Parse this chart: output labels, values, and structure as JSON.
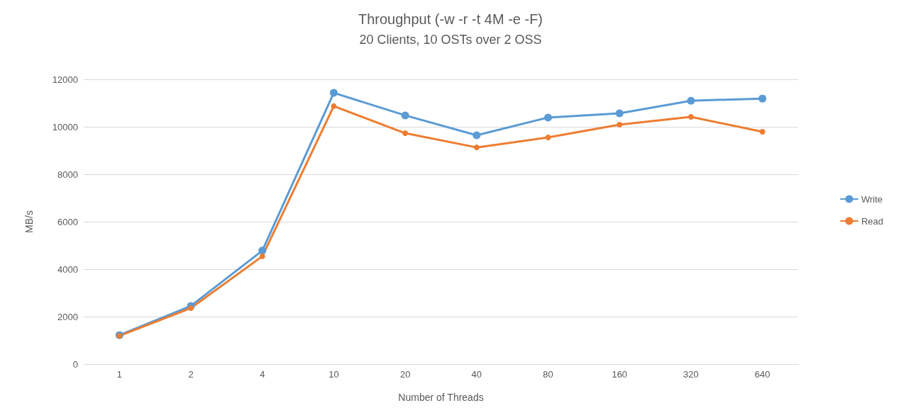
{
  "chart_data": {
    "type": "line",
    "title": "Throughput (-w -r -t 4M -e -F)",
    "subtitle": "20 Clients, 10 OSTs over 2 OSS",
    "xlabel": "Number of Threads",
    "ylabel": "MB/s",
    "categories": [
      "1",
      "2",
      "4",
      "10",
      "20",
      "40",
      "80",
      "160",
      "320",
      "640"
    ],
    "series": [
      {
        "name": "Write",
        "color": "#5b9bd5",
        "values": [
          1220,
          2450,
          4780,
          11430,
          10480,
          9640,
          10390,
          10570,
          11100,
          11190
        ]
      },
      {
        "name": "Read",
        "color": "#ed7d31",
        "values": [
          1190,
          2360,
          4540,
          10870,
          9730,
          9130,
          9550,
          10090,
          10420,
          9790
        ]
      }
    ],
    "ylim": [
      0,
      12000
    ],
    "yticks": [
      0,
      2000,
      4000,
      6000,
      8000,
      10000,
      12000
    ],
    "grid": "y",
    "legend": "right",
    "marker": "circle",
    "line_style": "solid"
  }
}
